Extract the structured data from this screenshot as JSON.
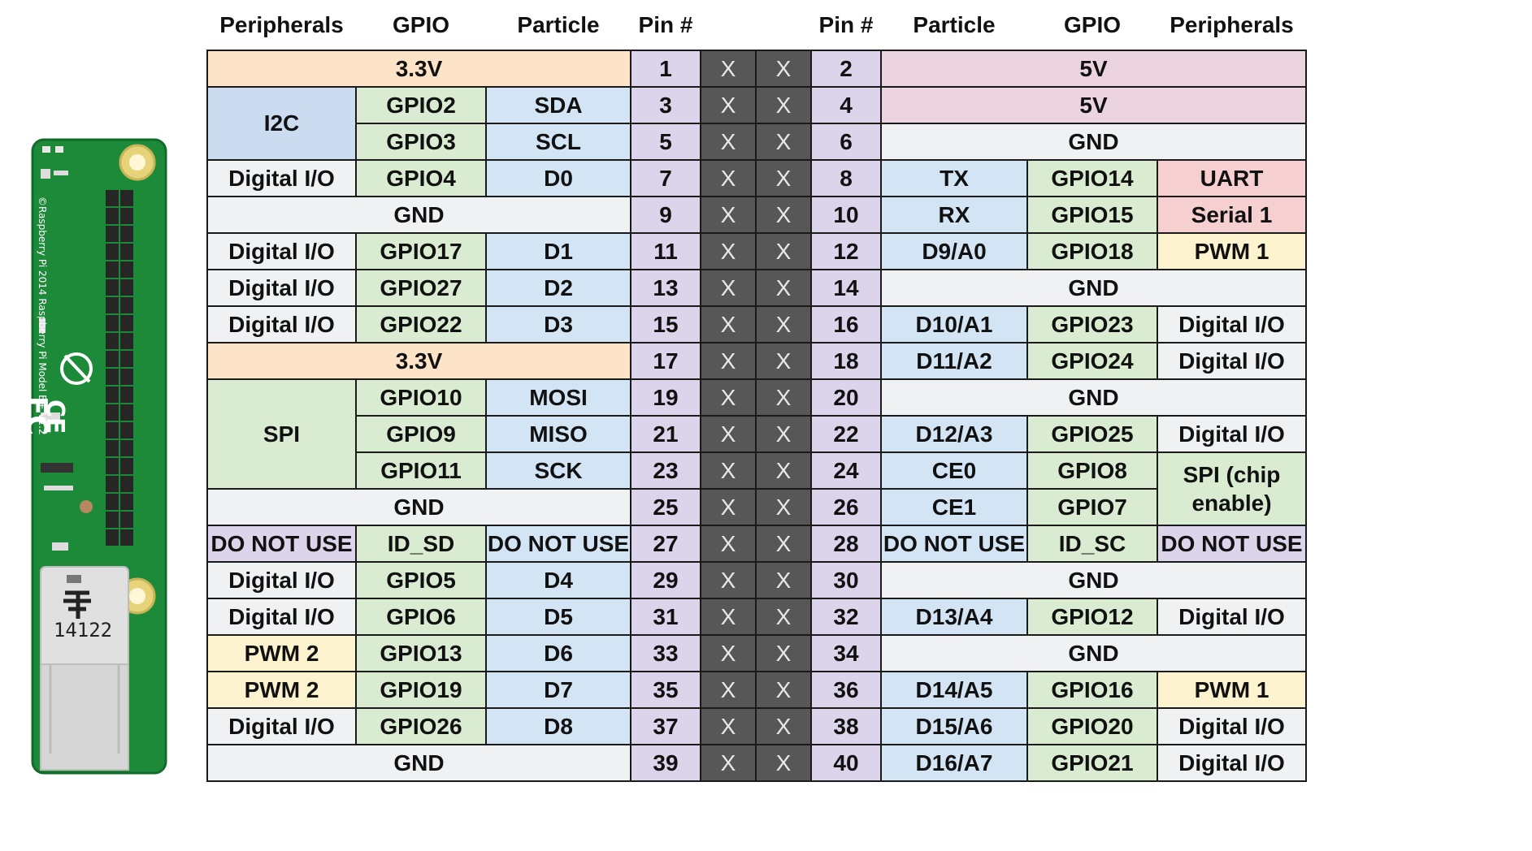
{
  "colors": {
    "power33": "#fde3c8",
    "power5": "#ecd3e0",
    "gnd": "#f0f1f2",
    "gpio": "#d9ecd2",
    "particle": "#d3e4f4",
    "pin": "#dbd4ea",
    "bus": "#ccdcf0",
    "digital": "#f0f1f2",
    "uart": "#f6cfd1",
    "pwm": "#fdf3cf",
    "spi": "#d9ecd2",
    "dnu": "#dbd4ea",
    "x": "#575757",
    "board_green": "#1d8a3a",
    "board_dark": "#126b2a"
  },
  "board": {
    "silkscreen": "©Raspberry Pi 2014  Raspberry Pi Model B+ V1.2",
    "connector_label": "14122"
  },
  "headers": [
    "Peripherals",
    "GPIO",
    "Particle",
    "Pin #",
    "",
    "",
    "Pin #",
    "Particle",
    "GPIO",
    "Peripherals"
  ],
  "column_widths": [
    183,
    160,
    178,
    86,
    68,
    68,
    86,
    180,
    160,
    183
  ],
  "rows": [
    [
      {
        "text": "3.3V",
        "colspan": 3,
        "c": "power33"
      },
      {
        "text": "1",
        "c": "pin"
      },
      {
        "text": "X",
        "c": "x"
      },
      {
        "text": "X",
        "c": "x"
      },
      {
        "text": "2",
        "c": "pin"
      },
      {
        "text": "5V",
        "colspan": 3,
        "c": "power5"
      }
    ],
    [
      {
        "text": "I2C",
        "rowspan": 2,
        "c": "bus"
      },
      {
        "text": "GPIO2",
        "c": "gpio"
      },
      {
        "text": "SDA",
        "c": "particle"
      },
      {
        "text": "3",
        "c": "pin"
      },
      {
        "text": "X",
        "c": "x"
      },
      {
        "text": "X",
        "c": "x"
      },
      {
        "text": "4",
        "c": "pin"
      },
      {
        "text": "5V",
        "colspan": 3,
        "c": "power5"
      }
    ],
    [
      {
        "text": "GPIO3",
        "c": "gpio"
      },
      {
        "text": "SCL",
        "c": "particle"
      },
      {
        "text": "5",
        "c": "pin"
      },
      {
        "text": "X",
        "c": "x"
      },
      {
        "text": "X",
        "c": "x"
      },
      {
        "text": "6",
        "c": "pin"
      },
      {
        "text": "GND",
        "colspan": 3,
        "c": "gnd"
      }
    ],
    [
      {
        "text": "Digital I/O",
        "c": "digital"
      },
      {
        "text": "GPIO4",
        "c": "gpio"
      },
      {
        "text": "D0",
        "c": "particle"
      },
      {
        "text": "7",
        "c": "pin"
      },
      {
        "text": "X",
        "c": "x"
      },
      {
        "text": "X",
        "c": "x"
      },
      {
        "text": "8",
        "c": "pin"
      },
      {
        "text": "TX",
        "c": "particle"
      },
      {
        "text": "GPIO14",
        "c": "gpio"
      },
      {
        "text": "UART",
        "c": "uart"
      }
    ],
    [
      {
        "text": "GND",
        "colspan": 3,
        "c": "gnd"
      },
      {
        "text": "9",
        "c": "pin"
      },
      {
        "text": "X",
        "c": "x"
      },
      {
        "text": "X",
        "c": "x"
      },
      {
        "text": "10",
        "c": "pin"
      },
      {
        "text": "RX",
        "c": "particle"
      },
      {
        "text": "GPIO15",
        "c": "gpio"
      },
      {
        "text": "Serial 1",
        "c": "uart"
      }
    ],
    [
      {
        "text": "Digital I/O",
        "c": "digital"
      },
      {
        "text": "GPIO17",
        "c": "gpio"
      },
      {
        "text": "D1",
        "c": "particle"
      },
      {
        "text": "11",
        "c": "pin"
      },
      {
        "text": "X",
        "c": "x"
      },
      {
        "text": "X",
        "c": "x"
      },
      {
        "text": "12",
        "c": "pin"
      },
      {
        "text": "D9/A0",
        "c": "particle"
      },
      {
        "text": "GPIO18",
        "c": "gpio"
      },
      {
        "text": "PWM 1",
        "c": "pwm"
      }
    ],
    [
      {
        "text": "Digital I/O",
        "c": "digital"
      },
      {
        "text": "GPIO27",
        "c": "gpio"
      },
      {
        "text": "D2",
        "c": "particle"
      },
      {
        "text": "13",
        "c": "pin"
      },
      {
        "text": "X",
        "c": "x"
      },
      {
        "text": "X",
        "c": "x"
      },
      {
        "text": "14",
        "c": "pin"
      },
      {
        "text": "GND",
        "colspan": 3,
        "c": "gnd"
      }
    ],
    [
      {
        "text": "Digital I/O",
        "c": "digital"
      },
      {
        "text": "GPIO22",
        "c": "gpio"
      },
      {
        "text": "D3",
        "c": "particle"
      },
      {
        "text": "15",
        "c": "pin"
      },
      {
        "text": "X",
        "c": "x"
      },
      {
        "text": "X",
        "c": "x"
      },
      {
        "text": "16",
        "c": "pin"
      },
      {
        "text": "D10/A1",
        "c": "particle"
      },
      {
        "text": "GPIO23",
        "c": "gpio"
      },
      {
        "text": "Digital I/O",
        "c": "digital"
      }
    ],
    [
      {
        "text": "3.3V",
        "colspan": 3,
        "c": "power33"
      },
      {
        "text": "17",
        "c": "pin"
      },
      {
        "text": "X",
        "c": "x"
      },
      {
        "text": "X",
        "c": "x"
      },
      {
        "text": "18",
        "c": "pin"
      },
      {
        "text": "D11/A2",
        "c": "particle"
      },
      {
        "text": "GPIO24",
        "c": "gpio"
      },
      {
        "text": "Digital I/O",
        "c": "digital"
      }
    ],
    [
      {
        "text": "SPI",
        "rowspan": 3,
        "c": "spi"
      },
      {
        "text": "GPIO10",
        "c": "gpio"
      },
      {
        "text": "MOSI",
        "c": "particle"
      },
      {
        "text": "19",
        "c": "pin"
      },
      {
        "text": "X",
        "c": "x"
      },
      {
        "text": "X",
        "c": "x"
      },
      {
        "text": "20",
        "c": "pin"
      },
      {
        "text": "GND",
        "colspan": 3,
        "c": "gnd"
      }
    ],
    [
      {
        "text": "GPIO9",
        "c": "gpio"
      },
      {
        "text": "MISO",
        "c": "particle"
      },
      {
        "text": "21",
        "c": "pin"
      },
      {
        "text": "X",
        "c": "x"
      },
      {
        "text": "X",
        "c": "x"
      },
      {
        "text": "22",
        "c": "pin"
      },
      {
        "text": "D12/A3",
        "c": "particle"
      },
      {
        "text": "GPIO25",
        "c": "gpio"
      },
      {
        "text": "Digital I/O",
        "c": "digital"
      }
    ],
    [
      {
        "text": "GPIO11",
        "c": "gpio"
      },
      {
        "text": "SCK",
        "c": "particle"
      },
      {
        "text": "23",
        "c": "pin"
      },
      {
        "text": "X",
        "c": "x"
      },
      {
        "text": "X",
        "c": "x"
      },
      {
        "text": "24",
        "c": "pin"
      },
      {
        "text": "CE0",
        "c": "particle"
      },
      {
        "text": "GPIO8",
        "c": "gpio"
      },
      {
        "text": "SPI\n(chip enable)",
        "rowspan": 2,
        "c": "spi"
      }
    ],
    [
      {
        "text": "GND",
        "colspan": 3,
        "c": "gnd"
      },
      {
        "text": "25",
        "c": "pin"
      },
      {
        "text": "X",
        "c": "x"
      },
      {
        "text": "X",
        "c": "x"
      },
      {
        "text": "26",
        "c": "pin"
      },
      {
        "text": "CE1",
        "c": "particle"
      },
      {
        "text": "GPIO7",
        "c": "gpio"
      }
    ],
    [
      {
        "text": "DO NOT USE",
        "c": "dnu"
      },
      {
        "text": "ID_SD",
        "c": "gpio"
      },
      {
        "text": "DO NOT USE",
        "c": "particle"
      },
      {
        "text": "27",
        "c": "pin"
      },
      {
        "text": "X",
        "c": "x"
      },
      {
        "text": "X",
        "c": "x"
      },
      {
        "text": "28",
        "c": "pin"
      },
      {
        "text": "DO NOT USE",
        "c": "particle"
      },
      {
        "text": "ID_SC",
        "c": "gpio"
      },
      {
        "text": "DO NOT USE",
        "c": "dnu"
      }
    ],
    [
      {
        "text": "Digital I/O",
        "c": "digital"
      },
      {
        "text": "GPIO5",
        "c": "gpio"
      },
      {
        "text": "D4",
        "c": "particle"
      },
      {
        "text": "29",
        "c": "pin"
      },
      {
        "text": "X",
        "c": "x"
      },
      {
        "text": "X",
        "c": "x"
      },
      {
        "text": "30",
        "c": "pin"
      },
      {
        "text": "GND",
        "colspan": 3,
        "c": "gnd"
      }
    ],
    [
      {
        "text": "Digital I/O",
        "c": "digital"
      },
      {
        "text": "GPIO6",
        "c": "gpio"
      },
      {
        "text": "D5",
        "c": "particle"
      },
      {
        "text": "31",
        "c": "pin"
      },
      {
        "text": "X",
        "c": "x"
      },
      {
        "text": "X",
        "c": "x"
      },
      {
        "text": "32",
        "c": "pin"
      },
      {
        "text": "D13/A4",
        "c": "particle"
      },
      {
        "text": "GPIO12",
        "c": "gpio"
      },
      {
        "text": "Digital I/O",
        "c": "digital"
      }
    ],
    [
      {
        "text": "PWM 2",
        "c": "pwm"
      },
      {
        "text": "GPIO13",
        "c": "gpio"
      },
      {
        "text": "D6",
        "c": "particle"
      },
      {
        "text": "33",
        "c": "pin"
      },
      {
        "text": "X",
        "c": "x"
      },
      {
        "text": "X",
        "c": "x"
      },
      {
        "text": "34",
        "c": "pin"
      },
      {
        "text": "GND",
        "colspan": 3,
        "c": "gnd"
      }
    ],
    [
      {
        "text": "PWM 2",
        "c": "pwm"
      },
      {
        "text": "GPIO19",
        "c": "gpio"
      },
      {
        "text": "D7",
        "c": "particle"
      },
      {
        "text": "35",
        "c": "pin"
      },
      {
        "text": "X",
        "c": "x"
      },
      {
        "text": "X",
        "c": "x"
      },
      {
        "text": "36",
        "c": "pin"
      },
      {
        "text": "D14/A5",
        "c": "particle"
      },
      {
        "text": "GPIO16",
        "c": "gpio"
      },
      {
        "text": "PWM 1",
        "c": "pwm"
      }
    ],
    [
      {
        "text": "Digital I/O",
        "c": "digital"
      },
      {
        "text": "GPIO26",
        "c": "gpio"
      },
      {
        "text": "D8",
        "c": "particle"
      },
      {
        "text": "37",
        "c": "pin"
      },
      {
        "text": "X",
        "c": "x"
      },
      {
        "text": "X",
        "c": "x"
      },
      {
        "text": "38",
        "c": "pin"
      },
      {
        "text": "D15/A6",
        "c": "particle"
      },
      {
        "text": "GPIO20",
        "c": "gpio"
      },
      {
        "text": "Digital I/O",
        "c": "digital"
      }
    ],
    [
      {
        "text": "GND",
        "colspan": 3,
        "c": "gnd"
      },
      {
        "text": "39",
        "c": "pin"
      },
      {
        "text": "X",
        "c": "x"
      },
      {
        "text": "X",
        "c": "x"
      },
      {
        "text": "40",
        "c": "pin"
      },
      {
        "text": "D16/A7",
        "c": "particle"
      },
      {
        "text": "GPIO21",
        "c": "gpio"
      },
      {
        "text": "Digital I/O",
        "c": "digital"
      }
    ]
  ]
}
